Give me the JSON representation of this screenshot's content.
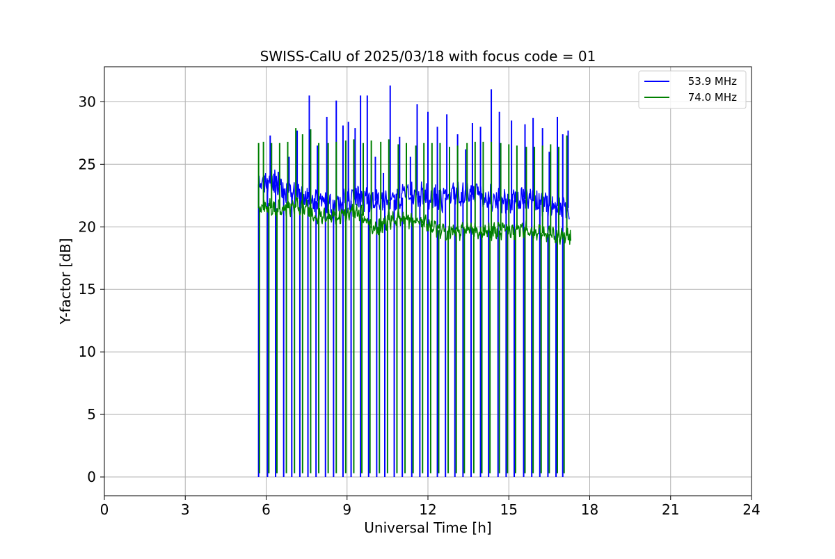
{
  "chart_data": {
    "type": "line",
    "title": "SWISS-CalU of 2025/03/18 with focus code = 01",
    "xlabel": "Universal Time [h]",
    "ylabel": "Y-factor [dB]",
    "xlim": [
      0,
      24
    ],
    "ylim": [
      -1.5,
      32.8
    ],
    "xticks": [
      0,
      3,
      6,
      9,
      12,
      15,
      18,
      21,
      24
    ],
    "yticks": [
      0,
      5,
      10,
      15,
      20,
      25,
      30
    ],
    "grid": true,
    "legend_position": "top-right",
    "series": [
      {
        "name": "53.9 MHz",
        "color": "#0000ff",
        "start_h": 5.72,
        "end_h": 17.25,
        "baseline": [
          [
            5.72,
            23.4
          ],
          [
            6.0,
            23.8
          ],
          [
            6.5,
            23.2
          ],
          [
            7.0,
            22.7
          ],
          [
            7.5,
            22.2
          ],
          [
            8.0,
            22.0
          ],
          [
            8.5,
            21.6
          ],
          [
            9.0,
            22.0
          ],
          [
            9.5,
            22.3
          ],
          [
            10.0,
            22.1
          ],
          [
            10.5,
            22.0
          ],
          [
            11.0,
            22.3
          ],
          [
            11.5,
            22.6
          ],
          [
            12.0,
            22.3
          ],
          [
            12.5,
            22.2
          ],
          [
            13.0,
            22.6
          ],
          [
            13.5,
            22.6
          ],
          [
            14.0,
            22.5
          ],
          [
            14.5,
            22.2
          ],
          [
            15.0,
            22.0
          ],
          [
            15.5,
            22.3
          ],
          [
            16.0,
            22.0
          ],
          [
            16.5,
            21.8
          ],
          [
            17.0,
            21.6
          ],
          [
            17.25,
            21.5
          ]
        ],
        "spikes": [
          [
            5.95,
            24.1
          ],
          [
            6.15,
            27.3
          ],
          [
            6.45,
            24.4
          ],
          [
            6.85,
            25.6
          ],
          [
            7.15,
            27.7
          ],
          [
            7.35,
            25.0
          ],
          [
            7.6,
            30.5
          ],
          [
            7.9,
            26.5
          ],
          [
            8.25,
            28.8
          ],
          [
            8.6,
            30.1
          ],
          [
            8.85,
            28.1
          ],
          [
            9.05,
            28.4
          ],
          [
            9.3,
            27.9
          ],
          [
            9.5,
            30.5
          ],
          [
            9.75,
            30.5
          ],
          [
            10.05,
            25.6
          ],
          [
            10.35,
            24.3
          ],
          [
            10.6,
            31.3
          ],
          [
            10.95,
            27.2
          ],
          [
            11.35,
            25.6
          ],
          [
            11.6,
            29.8
          ],
          [
            12.0,
            29.2
          ],
          [
            12.35,
            28.0
          ],
          [
            12.7,
            29.0
          ],
          [
            13.1,
            27.4
          ],
          [
            13.4,
            26.2
          ],
          [
            13.65,
            28.3
          ],
          [
            13.95,
            28.0
          ],
          [
            14.35,
            31.0
          ],
          [
            14.65,
            29.2
          ],
          [
            15.1,
            28.5
          ],
          [
            15.6,
            28.2
          ],
          [
            15.9,
            28.7
          ],
          [
            16.25,
            27.9
          ],
          [
            16.5,
            26.0
          ],
          [
            16.8,
            28.8
          ],
          [
            17.0,
            27.4
          ],
          [
            17.2,
            27.7
          ]
        ],
        "dips": [
          5.72,
          6.05,
          6.35,
          6.65,
          6.95,
          7.25,
          7.55,
          7.85,
          8.2,
          8.5,
          8.85,
          9.15,
          9.5,
          9.8,
          10.1,
          10.4,
          10.75,
          11.05,
          11.4,
          11.7,
          12.0,
          12.35,
          12.65,
          13.0,
          13.3,
          13.6,
          13.95,
          14.25,
          14.6,
          14.9,
          15.2,
          15.55,
          15.85,
          16.15,
          16.45,
          16.75,
          17.0
        ],
        "dip_min": 0.0
      },
      {
        "name": "74.0 MHz",
        "color": "#008000",
        "start_h": 5.72,
        "end_h": 17.3,
        "baseline": [
          [
            5.72,
            21.5
          ],
          [
            6.0,
            21.6
          ],
          [
            6.5,
            21.4
          ],
          [
            7.0,
            21.6
          ],
          [
            7.5,
            21.5
          ],
          [
            8.0,
            20.7
          ],
          [
            8.5,
            20.8
          ],
          [
            9.0,
            21.0
          ],
          [
            9.5,
            21.2
          ],
          [
            10.0,
            19.6
          ],
          [
            10.5,
            20.5
          ],
          [
            11.0,
            20.8
          ],
          [
            11.5,
            20.3
          ],
          [
            12.0,
            20.2
          ],
          [
            12.5,
            19.6
          ],
          [
            13.0,
            19.6
          ],
          [
            13.5,
            19.7
          ],
          [
            14.0,
            19.6
          ],
          [
            14.5,
            19.7
          ],
          [
            15.0,
            19.7
          ],
          [
            15.5,
            19.8
          ],
          [
            16.0,
            19.6
          ],
          [
            16.5,
            19.4
          ],
          [
            17.0,
            19.3
          ],
          [
            17.3,
            19.3
          ]
        ],
        "spikes": [
          [
            5.72,
            26.7
          ],
          [
            5.9,
            26.8
          ],
          [
            6.2,
            26.7
          ],
          [
            6.5,
            26.7
          ],
          [
            6.8,
            26.8
          ],
          [
            7.1,
            27.9
          ],
          [
            7.35,
            27.4
          ],
          [
            7.65,
            27.8
          ],
          [
            7.95,
            26.7
          ],
          [
            8.3,
            26.7
          ],
          [
            8.6,
            26.8
          ],
          [
            8.95,
            26.9
          ],
          [
            9.25,
            27.0
          ],
          [
            9.6,
            26.7
          ],
          [
            9.9,
            26.9
          ],
          [
            10.25,
            26.8
          ],
          [
            10.55,
            27.0
          ],
          [
            10.9,
            26.6
          ],
          [
            11.2,
            26.7
          ],
          [
            11.55,
            26.5
          ],
          [
            11.85,
            26.7
          ],
          [
            12.15,
            26.7
          ],
          [
            12.45,
            26.7
          ],
          [
            12.8,
            26.4
          ],
          [
            13.1,
            26.5
          ],
          [
            13.45,
            26.7
          ],
          [
            13.75,
            26.8
          ],
          [
            14.05,
            26.8
          ],
          [
            14.35,
            26.8
          ],
          [
            14.7,
            26.7
          ],
          [
            15.0,
            26.6
          ],
          [
            15.3,
            26.5
          ],
          [
            15.65,
            26.4
          ],
          [
            15.95,
            26.4
          ],
          [
            16.25,
            26.5
          ],
          [
            16.55,
            26.6
          ],
          [
            16.85,
            26.4
          ],
          [
            17.15,
            27.3
          ]
        ],
        "dips": [
          5.75,
          6.1,
          6.4,
          6.75,
          7.05,
          7.35,
          7.65,
          7.95,
          8.3,
          8.6,
          8.95,
          9.25,
          9.55,
          9.85,
          10.2,
          10.5,
          10.85,
          11.15,
          11.45,
          11.8,
          12.1,
          12.4,
          12.75,
          13.05,
          13.35,
          13.7,
          14.0,
          14.3,
          14.65,
          14.95,
          15.25,
          15.6,
          15.9,
          16.2,
          16.5,
          16.8,
          17.05
        ],
        "dip_min": 0.3
      }
    ]
  }
}
